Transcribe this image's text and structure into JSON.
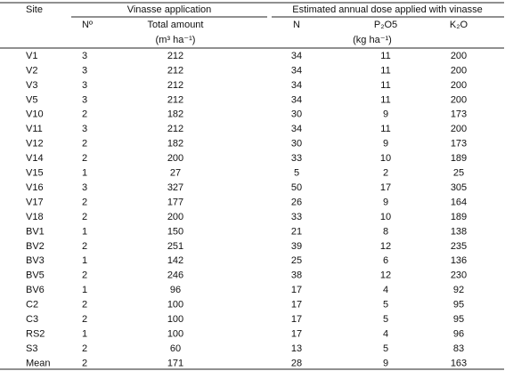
{
  "header": {
    "site": "Site",
    "vinasse": "Vinasse application",
    "dose": "Estimated annual dose applied with vinasse"
  },
  "columns": [
    "Nº",
    "Total amount",
    "N",
    "P₂O5",
    "K₂O"
  ],
  "units": {
    "amount": "(m³ ha⁻¹)",
    "dose": "(kg ha⁻¹)"
  },
  "rows": [
    [
      "V1",
      3,
      212,
      34,
      11,
      200
    ],
    [
      "V2",
      3,
      212,
      34,
      11,
      200
    ],
    [
      "V3",
      3,
      212,
      34,
      11,
      200
    ],
    [
      "V5",
      3,
      212,
      34,
      11,
      200
    ],
    [
      "V10",
      2,
      182,
      30,
      9,
      173
    ],
    [
      "V11",
      3,
      212,
      34,
      11,
      200
    ],
    [
      "V12",
      2,
      182,
      30,
      9,
      173
    ],
    [
      "V14",
      2,
      200,
      33,
      10,
      189
    ],
    [
      "V15",
      1,
      27,
      5,
      2,
      25
    ],
    [
      "V16",
      3,
      327,
      50,
      17,
      305
    ],
    [
      "V17",
      2,
      177,
      26,
      9,
      164
    ],
    [
      "V18",
      2,
      200,
      33,
      10,
      189
    ],
    [
      "BV1",
      1,
      150,
      21,
      8,
      138
    ],
    [
      "BV2",
      2,
      251,
      39,
      12,
      235
    ],
    [
      "BV3",
      1,
      142,
      25,
      6,
      136
    ],
    [
      "BV5",
      2,
      246,
      38,
      12,
      230
    ],
    [
      "BV6",
      1,
      96,
      17,
      4,
      92
    ],
    [
      "C2",
      2,
      100,
      17,
      5,
      95
    ],
    [
      "C3",
      2,
      100,
      17,
      5,
      95
    ],
    [
      "RS2",
      1,
      100,
      17,
      4,
      96
    ],
    [
      "S3",
      2,
      60,
      13,
      5,
      83
    ],
    [
      "Mean",
      2,
      171,
      28,
      9,
      163
    ]
  ]
}
